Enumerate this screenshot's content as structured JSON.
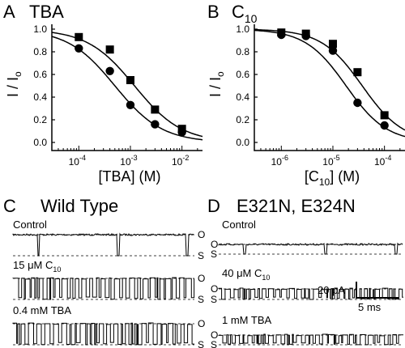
{
  "panel_labels": {
    "a": "A",
    "b": "B",
    "c": "C",
    "d": "D"
  },
  "chart_data": [
    {
      "type": "scatter",
      "title": "TBA",
      "xlabel": "[TBA] (M)",
      "ylabel": "I / I",
      "ylabel_sub": "o",
      "x_scale": "log",
      "xlim": [
        3e-05,
        0.025
      ],
      "ylim": [
        0,
        1
      ],
      "x_ticks": [
        {
          "v": 0.0001,
          "base": "10",
          "exp": "-4"
        },
        {
          "v": 0.001,
          "base": "10",
          "exp": "-3"
        },
        {
          "v": 0.01,
          "base": "10",
          "exp": "-2"
        }
      ],
      "y_ticks": [
        "0.0",
        "0.2",
        "0.4",
        "0.6",
        "0.8",
        "1.0"
      ],
      "series": [
        {
          "marker": "square",
          "x": [
            0.0001,
            0.0004,
            0.001,
            0.003,
            0.01
          ],
          "y": [
            0.93,
            0.82,
            0.55,
            0.29,
            0.12
          ],
          "fit_ic50": 0.0012,
          "fit_n": 0.95
        },
        {
          "marker": "circle",
          "x": [
            0.0001,
            0.0004,
            0.001,
            0.003,
            0.01
          ],
          "y": [
            0.83,
            0.63,
            0.33,
            0.16,
            0.09
          ],
          "fit_ic50": 0.0005,
          "fit_n": 0.95
        }
      ]
    },
    {
      "type": "scatter",
      "title": "C",
      "title_sub": "10",
      "xlabel": "[C",
      "xlabel_sub": "10",
      "xlabel_tail": "] (M)",
      "ylabel": "I / I",
      "ylabel_sub": "o",
      "x_scale": "log",
      "xlim": [
        3e-07,
        0.00025
      ],
      "ylim": [
        0,
        1
      ],
      "x_ticks": [
        {
          "v": 1e-06,
          "base": "10",
          "exp": "-6"
        },
        {
          "v": 1e-05,
          "base": "10",
          "exp": "-5"
        },
        {
          "v": 0.0001,
          "base": "10",
          "exp": "-4"
        }
      ],
      "y_ticks": [
        "0.0",
        "0.2",
        "0.4",
        "0.6",
        "0.8",
        "1.0"
      ],
      "series": [
        {
          "marker": "square",
          "x": [
            1e-06,
            3e-06,
            1e-05,
            3e-05,
            0.0001
          ],
          "y": [
            0.97,
            0.96,
            0.87,
            0.62,
            0.24
          ],
          "fit_ic50": 3.7e-05,
          "fit_n": 1.1
        },
        {
          "marker": "circle",
          "x": [
            1e-06,
            3e-06,
            1e-05,
            3e-05,
            0.0001
          ],
          "y": [
            0.95,
            0.94,
            0.81,
            0.35,
            0.15
          ],
          "fit_ic50": 1.8e-05,
          "fit_n": 1.1
        }
      ]
    }
  ],
  "traces": {
    "wild": {
      "title": "Wild Type",
      "rows": [
        {
          "label": "Control",
          "label_sub": ""
        },
        {
          "label": "15 μM C",
          "label_sub": "10"
        },
        {
          "label": "0.4 mM TBA",
          "label_sub": ""
        }
      ]
    },
    "mutant": {
      "title": "E321N, E324N",
      "rows": [
        {
          "label": "Control",
          "label_sub": ""
        },
        {
          "label": "40 μM C",
          "label_sub": "10"
        },
        {
          "label": "1 mM TBA",
          "label_sub": ""
        }
      ]
    },
    "open_label": "O",
    "shut_label": "S",
    "scale_current": "20 pA",
    "scale_time": "5 ms"
  }
}
